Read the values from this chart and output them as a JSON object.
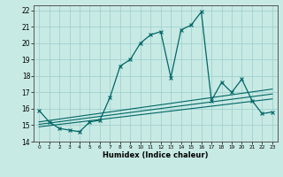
{
  "xlabel": "Humidex (Indice chaleur)",
  "xlim": [
    -0.5,
    23.5
  ],
  "ylim": [
    14,
    22.3
  ],
  "xticks": [
    0,
    1,
    2,
    3,
    4,
    5,
    6,
    7,
    8,
    9,
    10,
    11,
    12,
    13,
    14,
    15,
    16,
    17,
    18,
    19,
    20,
    21,
    22,
    23
  ],
  "yticks": [
    14,
    15,
    16,
    17,
    18,
    19,
    20,
    21,
    22
  ],
  "bg_color": "#c8eae4",
  "line_color": "#006666",
  "grid_color": "#99cccc",
  "curve1_x": [
    0,
    1,
    2,
    3,
    4,
    5,
    6,
    7,
    8,
    9,
    10,
    11,
    12,
    13,
    14,
    15,
    16,
    17,
    18,
    19,
    20,
    21,
    22,
    23
  ],
  "curve1_y": [
    15.9,
    15.2,
    14.8,
    14.7,
    14.6,
    15.2,
    15.3,
    16.7,
    18.6,
    19.0,
    20.0,
    20.5,
    20.7,
    17.9,
    20.8,
    21.1,
    21.9,
    16.5,
    17.6,
    17.0,
    17.8,
    16.5,
    15.7,
    15.8
  ],
  "line1_x": [
    0,
    23
  ],
  "line1_y": [
    15.05,
    16.9
  ],
  "line2_x": [
    0,
    23
  ],
  "line2_y": [
    14.9,
    16.6
  ],
  "line3_x": [
    0,
    23
  ],
  "line3_y": [
    15.2,
    17.2
  ]
}
